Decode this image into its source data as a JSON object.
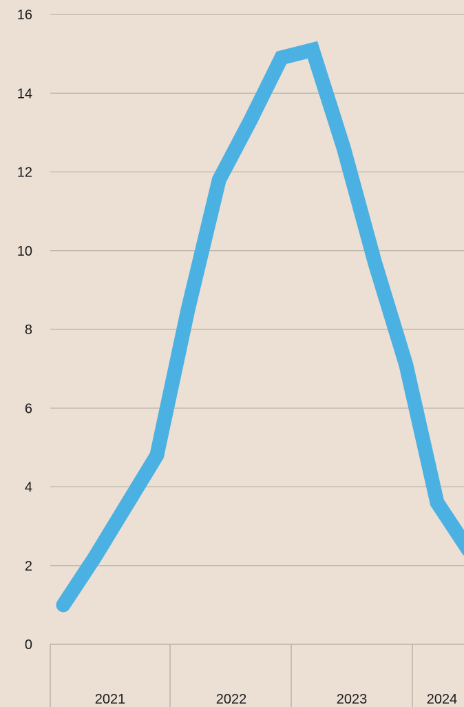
{
  "chart_data": {
    "type": "line",
    "title": "",
    "xlabel": "",
    "ylabel": "",
    "x": [
      "2021-01",
      "2021-04",
      "2021-07",
      "2021-10",
      "2022-01",
      "2022-04",
      "2022-07",
      "2022-10",
      "2023-01",
      "2023-04",
      "2023-07",
      "2023-10",
      "2024-01",
      "2024-04"
    ],
    "series": [
      {
        "values": [
          1.0,
          2.2,
          3.5,
          4.8,
          8.5,
          11.8,
          13.3,
          14.9,
          15.1,
          12.6,
          9.7,
          7.1,
          3.6,
          2.4
        ],
        "color": "#4ab1e2"
      }
    ],
    "ylim": [
      0,
      16
    ],
    "y_ticks": [
      "0",
      "2",
      "4",
      "6",
      "8",
      "10",
      "12",
      "14",
      "16"
    ],
    "x_tick_labels": [
      "2021",
      "2022",
      "2023",
      "2024"
    ],
    "grid": "horizontal",
    "colors": {
      "background": "#ecdfd4",
      "grid": "#b9b2ab",
      "line": "#4ab1e2",
      "text": "#1a1a1a"
    }
  }
}
